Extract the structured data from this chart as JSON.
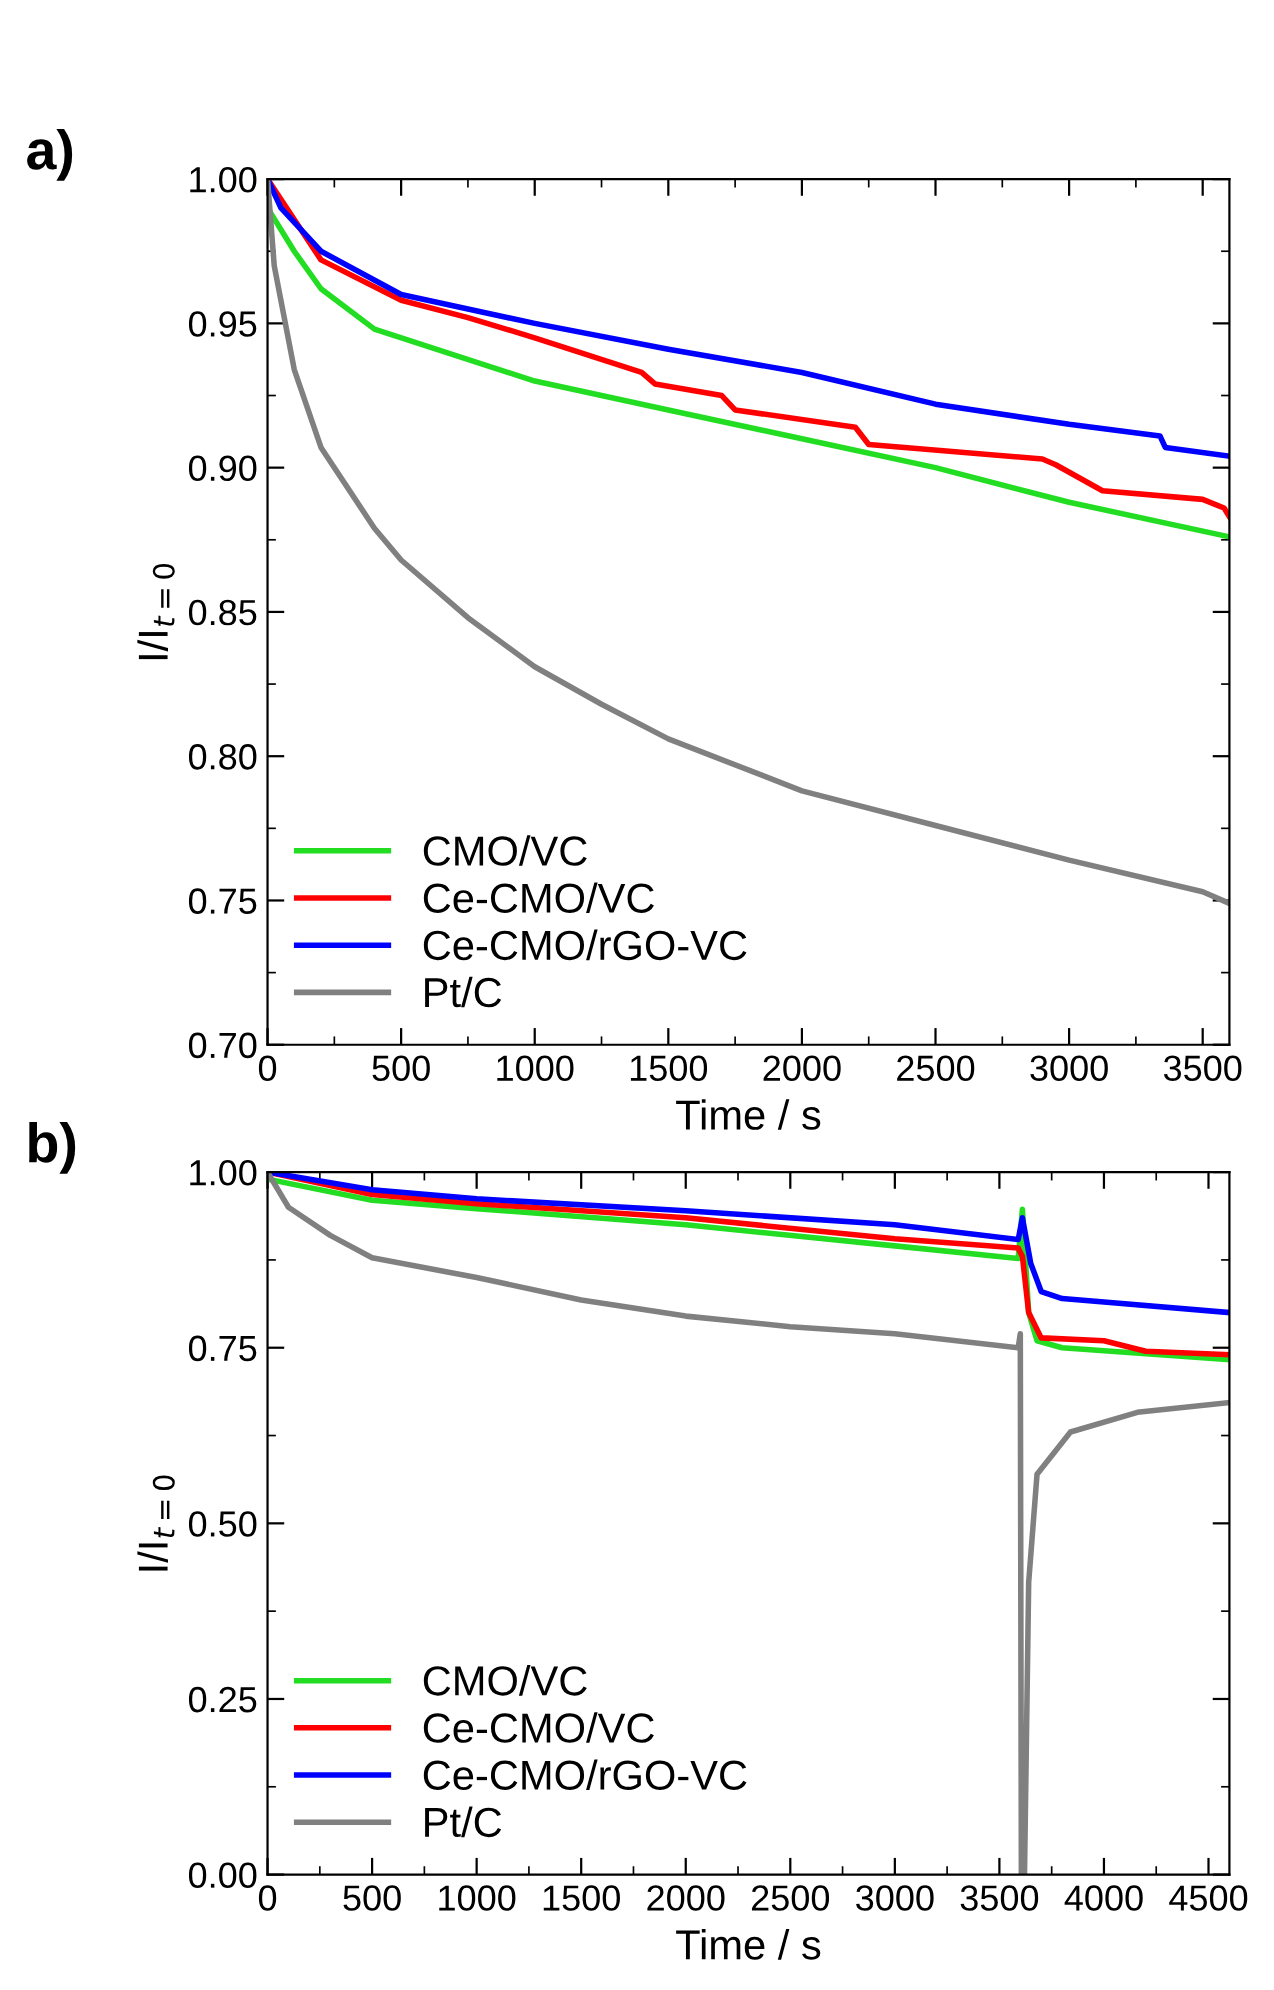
{
  "chart_data": [
    {
      "type": "line",
      "title": "a)",
      "xlabel": "Time / s",
      "ylabel": "I/I$_{t=0}$",
      "xlim": [
        0,
        3600
      ],
      "ylim": [
        0.7,
        1.0
      ],
      "xticks": [
        0,
        500,
        1000,
        1500,
        2000,
        2500,
        3000,
        3500
      ],
      "yticks": [
        {
          "value": 0.7,
          "label": "0.70"
        },
        {
          "value": 0.75,
          "label": "0.75"
        },
        {
          "value": 0.8,
          "label": "0.80"
        },
        {
          "value": 0.85,
          "label": "0.85"
        },
        {
          "value": 0.9,
          "label": "0.90"
        },
        {
          "value": 0.95,
          "label": "0.95"
        },
        {
          "value": 1.0,
          "label": "1.00"
        }
      ],
      "legend": "bottom left",
      "grid": false,
      "line_style": "solid",
      "marker": "none",
      "series": [
        {
          "name": "CMO/VC",
          "color": "#22dd22",
          "x": [
            0,
            100,
            200,
            400,
            1000,
            1500,
            2000,
            2500,
            3000,
            3600
          ],
          "values": [
            0.99,
            0.975,
            0.962,
            0.948,
            0.93,
            0.92,
            0.91,
            0.9,
            0.888,
            0.876
          ]
        },
        {
          "name": "Ce-CMO/VC",
          "color": "#ff0000",
          "x": [
            0,
            200,
            500,
            750,
            1000,
            1400,
            1450,
            1700,
            1750,
            2200,
            2250,
            2900,
            2950,
            3125,
            3500,
            3580,
            3600
          ],
          "values": [
            1.0,
            0.972,
            0.958,
            0.952,
            0.945,
            0.933,
            0.929,
            0.925,
            0.92,
            0.914,
            0.908,
            0.903,
            0.901,
            0.892,
            0.889,
            0.886,
            0.883
          ]
        },
        {
          "name": "Ce-CMO/rGO-VC",
          "color": "#0000ff",
          "x": [
            0,
            50,
            200,
            500,
            1000,
            1500,
            2000,
            2500,
            3000,
            3340,
            3360,
            3600
          ],
          "values": [
            1.0,
            0.99,
            0.975,
            0.96,
            0.95,
            0.941,
            0.933,
            0.922,
            0.915,
            0.911,
            0.907,
            0.904
          ]
        },
        {
          "name": "Pt/C",
          "color": "#808080",
          "x": [
            0,
            25,
            100,
            200,
            400,
            500,
            750,
            1000,
            1250,
            1500,
            2000,
            2500,
            3000,
            3500,
            3600
          ],
          "values": [
            1.0,
            0.97,
            0.934,
            0.907,
            0.879,
            0.868,
            0.848,
            0.831,
            0.818,
            0.806,
            0.788,
            0.776,
            0.764,
            0.753,
            0.749
          ]
        }
      ]
    },
    {
      "type": "line",
      "title": "b)",
      "xlabel": "Time / s",
      "ylabel": "I/I$_{t=0}$",
      "xlim": [
        0,
        4600
      ],
      "ylim": [
        0,
        1.0
      ],
      "xticks": [
        0,
        500,
        1000,
        1500,
        2000,
        2500,
        3000,
        3500,
        4000,
        4500
      ],
      "yticks": [
        {
          "value": 0,
          "label": "0.00"
        },
        {
          "value": 0.25,
          "label": "0.25"
        },
        {
          "value": 0.5,
          "label": "0.50"
        },
        {
          "value": 0.75,
          "label": "0.75"
        },
        {
          "value": 1.0,
          "label": "1.00"
        }
      ],
      "legend": "bottom left",
      "grid": false,
      "line_style": "solid",
      "marker": "none",
      "series": [
        {
          "name": "CMO/VC",
          "color": "#22dd22",
          "x": [
            0,
            500,
            1000,
            2000,
            3000,
            3590,
            3610,
            3640,
            3680,
            3800,
            4600
          ],
          "values": [
            0.99,
            0.96,
            0.948,
            0.925,
            0.895,
            0.877,
            0.947,
            0.8,
            0.76,
            0.75,
            0.733
          ]
        },
        {
          "name": "Ce-CMO/VC",
          "color": "#ff0000",
          "x": [
            0,
            500,
            1000,
            2000,
            3000,
            3590,
            3610,
            3640,
            3700,
            4000,
            4200,
            4600
          ],
          "values": [
            1.0,
            0.968,
            0.955,
            0.935,
            0.905,
            0.892,
            0.88,
            0.8,
            0.764,
            0.76,
            0.745,
            0.74
          ]
        },
        {
          "name": "Ce-CMO/rGO-VC",
          "color": "#0000ff",
          "x": [
            0,
            500,
            1000,
            2000,
            3000,
            3590,
            3610,
            3650,
            3700,
            3800,
            4000,
            4600
          ],
          "values": [
            1.0,
            0.975,
            0.962,
            0.945,
            0.925,
            0.904,
            0.935,
            0.87,
            0.83,
            0.82,
            0.815,
            0.8
          ]
        },
        {
          "name": "Pt/C",
          "color": "#808080",
          "x": [
            0,
            100,
            300,
            500,
            1000,
            1500,
            2000,
            2500,
            3000,
            3590,
            3600,
            3605,
            3620,
            3640,
            3680,
            3840,
            4160,
            4600
          ],
          "values": [
            1.0,
            0.95,
            0.91,
            0.878,
            0.85,
            0.818,
            0.795,
            0.78,
            0.77,
            0.75,
            0.77,
            0.0,
            0.0,
            0.416,
            0.57,
            0.63,
            0.658,
            0.672
          ]
        }
      ]
    }
  ]
}
